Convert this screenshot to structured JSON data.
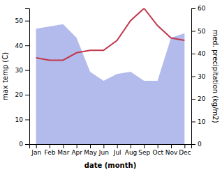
{
  "chart_data": {
    "type": "line",
    "categories": [
      "Jan",
      "Feb",
      "Mar",
      "Apr",
      "May",
      "Jun",
      "Jul",
      "Aug",
      "Sep",
      "Oct",
      "Nov",
      "Dec"
    ],
    "xlabel": "date (month)",
    "ylabel": "max temp (C)",
    "y2label": "med. precipitation (kg/m2)",
    "ylim": [
      0,
      55
    ],
    "yticks": [
      0,
      10,
      20,
      30,
      40,
      50
    ],
    "y2lim": [
      0,
      60
    ],
    "y2ticks": [
      0,
      10,
      20,
      30,
      40,
      50,
      60
    ],
    "series": [
      {
        "type": "area",
        "axis": "y2",
        "color": "#b3baec",
        "values": [
          51,
          52,
          53,
          47,
          32,
          28,
          31,
          32,
          28,
          28,
          47,
          49
        ]
      },
      {
        "type": "line",
        "color": "#c0394b",
        "values": [
          35,
          34,
          34,
          37,
          38,
          38,
          42,
          50,
          55,
          48,
          43,
          42
        ]
      }
    ]
  }
}
